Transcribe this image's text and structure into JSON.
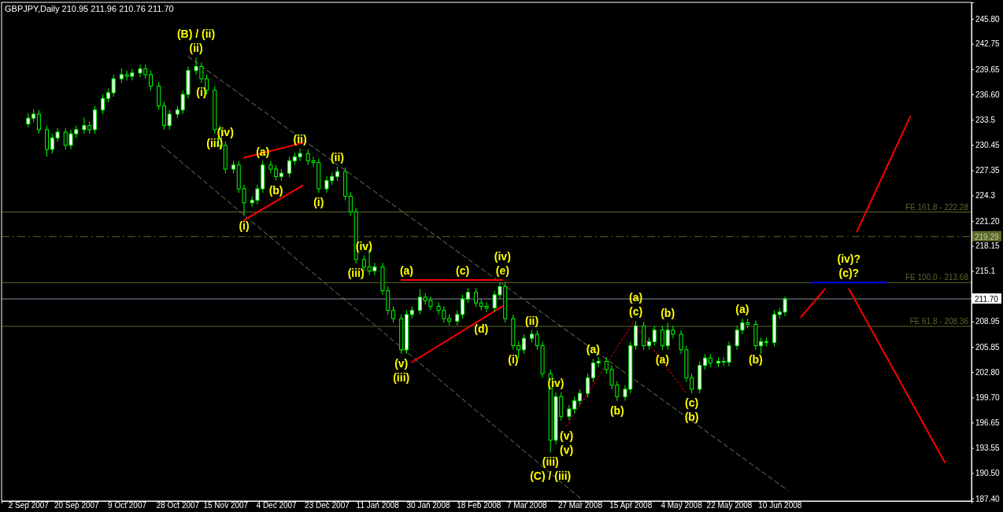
{
  "chart_data": {
    "type": "candlestick",
    "title": "GBPJPY,Daily  210.95 211.96 210.76 211.70",
    "xlim": [
      "2007-08-23",
      "2008-08-21"
    ],
    "ylim": [
      187.1,
      247.8
    ],
    "xticks": [
      {
        "value": "2007-09-02",
        "label": "2 Sep 2007"
      },
      {
        "value": "2007-09-20",
        "label": "20 Sep 2007"
      },
      {
        "value": "2007-10-09",
        "label": "9 Oct 2007"
      },
      {
        "value": "2007-10-28",
        "label": "28 Oct 2007"
      },
      {
        "value": "2007-11-15",
        "label": "15 Nov 2007"
      },
      {
        "value": "2007-12-04",
        "label": "4 Dec 2007"
      },
      {
        "value": "2007-12-23",
        "label": "23 Dec 2007"
      },
      {
        "value": "2008-01-11",
        "label": "11 Jan 2008"
      },
      {
        "value": "2008-01-30",
        "label": "30 Jan 2008"
      },
      {
        "value": "2008-02-18",
        "label": "18 Feb 2008"
      },
      {
        "value": "2008-03-07",
        "label": "7 Mar 2008"
      },
      {
        "value": "2008-03-27",
        "label": "27 Mar 2008"
      },
      {
        "value": "2008-04-15",
        "label": "15 Apr 2008"
      },
      {
        "value": "2008-05-04",
        "label": "4 May 2008"
      },
      {
        "value": "2008-05-22",
        "label": "22 May 2008"
      },
      {
        "value": "2008-06-10",
        "label": "10 Jun 2008"
      }
    ],
    "yticks": [
      {
        "value": 245.8,
        "label": "245.80"
      },
      242.75,
      239.65,
      {
        "value": 236.6,
        "label": "236.60"
      },
      233.5,
      230.45,
      227.35,
      224.3,
      {
        "value": 221.2,
        "label": "221.20"
      },
      218.15,
      215.1,
      208.95,
      205.85,
      {
        "value": 202.8,
        "label": "202.80"
      },
      {
        "value": 199.7,
        "label": "199.70"
      },
      196.65,
      193.55,
      {
        "value": 190.5,
        "label": "190.50"
      },
      {
        "value": 187.4,
        "label": "187.40"
      }
    ],
    "series": [
      {
        "color": "#00ff00",
        "x": [
          "2007-09-02",
          "2007-09-04",
          "2007-09-06",
          "2007-09-09",
          "2007-09-11",
          "2007-09-13",
          "2007-09-16",
          "2007-09-18",
          "2007-09-20",
          "2007-09-23",
          "2007-09-25",
          "2007-09-27",
          "2007-09-30",
          "2007-10-02",
          "2007-10-04",
          "2007-10-07",
          "2007-10-09",
          "2007-10-11",
          "2007-10-14",
          "2007-10-16",
          "2007-10-18",
          "2007-10-21",
          "2007-10-23",
          "2007-10-25",
          "2007-10-28",
          "2007-10-30",
          "2007-11-01",
          "2007-11-04",
          "2007-11-06",
          "2007-11-08",
          "2007-11-11",
          "2007-11-13",
          "2007-11-15",
          "2007-11-18",
          "2007-11-20",
          "2007-11-22",
          "2007-11-25",
          "2007-11-27",
          "2007-11-29",
          "2007-12-02",
          "2007-12-04",
          "2007-12-06",
          "2007-12-09",
          "2007-12-11",
          "2007-12-13",
          "2007-12-16",
          "2007-12-18",
          "2007-12-20",
          "2007-12-23",
          "2007-12-25",
          "2007-12-27",
          "2007-12-30",
          "2008-01-01",
          "2008-01-03",
          "2008-01-06",
          "2008-01-08",
          "2008-01-10",
          "2008-01-13",
          "2008-01-15",
          "2008-01-17",
          "2008-01-20",
          "2008-01-22",
          "2008-01-24",
          "2008-01-27",
          "2008-01-29",
          "2008-01-31",
          "2008-02-03",
          "2008-02-05",
          "2008-02-07",
          "2008-02-10",
          "2008-02-12",
          "2008-02-14",
          "2008-02-17",
          "2008-02-19",
          "2008-02-21",
          "2008-02-24",
          "2008-02-26",
          "2008-02-28",
          "2008-03-02",
          "2008-03-04",
          "2008-03-06",
          "2008-03-09",
          "2008-03-11",
          "2008-03-13",
          "2008-03-16",
          "2008-03-18",
          "2008-03-20",
          "2008-03-23",
          "2008-03-25",
          "2008-03-27",
          "2008-03-30",
          "2008-04-01",
          "2008-04-03",
          "2008-04-06",
          "2008-04-08",
          "2008-04-10",
          "2008-04-13",
          "2008-04-15",
          "2008-04-17",
          "2008-04-20",
          "2008-04-22",
          "2008-04-24",
          "2008-04-27",
          "2008-04-29",
          "2008-05-01",
          "2008-05-04",
          "2008-05-06",
          "2008-05-08",
          "2008-05-11",
          "2008-05-13",
          "2008-05-15",
          "2008-05-18",
          "2008-05-20",
          "2008-05-22",
          "2008-05-25",
          "2008-05-27",
          "2008-05-29",
          "2008-06-01",
          "2008-06-03",
          "2008-06-05",
          "2008-06-08",
          "2008-06-10",
          "2008-06-12"
        ],
        "ohlc": [
          [
            233.0,
            234.3,
            232.6,
            233.7
          ],
          [
            233.7,
            234.8,
            233.2,
            234.2
          ],
          [
            234.2,
            234.7,
            231.8,
            232.3
          ],
          [
            232.3,
            232.8,
            229.0,
            229.9
          ],
          [
            229.9,
            231.8,
            229.4,
            231.3
          ],
          [
            231.3,
            232.5,
            230.8,
            232.0
          ],
          [
            232.0,
            232.5,
            229.9,
            230.4
          ],
          [
            230.4,
            232.3,
            229.9,
            231.8
          ],
          [
            231.8,
            232.8,
            231.3,
            232.3
          ],
          [
            232.3,
            233.8,
            231.8,
            232.8
          ],
          [
            232.8,
            233.3,
            231.8,
            232.3
          ],
          [
            232.3,
            235.2,
            231.8,
            234.7
          ],
          [
            234.7,
            236.6,
            234.2,
            236.1
          ],
          [
            236.1,
            237.3,
            235.6,
            236.8
          ],
          [
            236.8,
            239.0,
            236.3,
            238.5
          ],
          [
            238.5,
            239.8,
            238.0,
            239.0
          ],
          [
            239.0,
            239.5,
            238.3,
            238.8
          ],
          [
            238.8,
            239.7,
            238.3,
            239.2
          ],
          [
            239.2,
            240.2,
            238.7,
            239.7
          ],
          [
            239.7,
            240.2,
            238.5,
            239.0
          ],
          [
            239.0,
            239.5,
            237.1,
            237.6
          ],
          [
            237.6,
            238.1,
            234.7,
            235.2
          ],
          [
            235.2,
            235.7,
            232.3,
            232.8
          ],
          [
            232.8,
            234.7,
            232.3,
            234.2
          ],
          [
            234.2,
            235.2,
            233.7,
            234.7
          ],
          [
            234.7,
            237.1,
            234.2,
            236.6
          ],
          [
            236.6,
            240.0,
            236.1,
            239.5
          ],
          [
            239.5,
            241.1,
            239.0,
            240.0
          ],
          [
            240.0,
            240.5,
            238.0,
            238.5
          ],
          [
            238.5,
            239.0,
            236.6,
            237.1
          ],
          [
            237.1,
            237.6,
            231.8,
            232.3
          ],
          [
            232.3,
            232.8,
            229.9,
            230.4
          ],
          [
            230.4,
            230.9,
            227.0,
            227.5
          ],
          [
            227.5,
            228.5,
            227.0,
            228.0
          ],
          [
            228.0,
            228.5,
            224.6,
            225.1
          ],
          [
            225.1,
            225.6,
            221.8,
            223.4
          ],
          [
            223.4,
            224.2,
            222.9,
            223.7
          ],
          [
            223.7,
            225.6,
            223.2,
            225.1
          ],
          [
            225.1,
            228.5,
            224.6,
            228.0
          ],
          [
            228.0,
            228.5,
            227.0,
            227.5
          ],
          [
            227.5,
            228.0,
            226.1,
            226.6
          ],
          [
            226.6,
            227.5,
            226.1,
            227.0
          ],
          [
            227.0,
            229.0,
            226.5,
            228.5
          ],
          [
            228.5,
            229.5,
            228.0,
            229.0
          ],
          [
            229.0,
            230.0,
            228.5,
            229.4
          ],
          [
            229.4,
            229.9,
            228.0,
            228.5
          ],
          [
            228.5,
            229.0,
            227.8,
            228.3
          ],
          [
            228.3,
            228.8,
            224.6,
            225.1
          ],
          [
            225.1,
            226.6,
            224.6,
            226.1
          ],
          [
            226.1,
            227.1,
            225.6,
            226.6
          ],
          [
            226.6,
            227.8,
            226.1,
            227.2
          ],
          [
            227.2,
            227.7,
            223.7,
            224.2
          ],
          [
            224.2,
            224.7,
            221.8,
            222.3
          ],
          [
            222.3,
            222.8,
            216.0,
            216.5
          ],
          [
            216.5,
            217.0,
            215.1,
            215.6
          ],
          [
            215.6,
            217.8,
            214.6,
            215.1
          ],
          [
            215.1,
            216.1,
            214.6,
            215.6
          ],
          [
            215.6,
            216.1,
            212.2,
            212.7
          ],
          [
            212.7,
            213.2,
            209.8,
            210.3
          ],
          [
            210.3,
            210.8,
            208.8,
            209.3
          ],
          [
            209.3,
            209.8,
            205.0,
            205.5
          ],
          [
            205.5,
            210.3,
            205.0,
            209.8
          ],
          [
            209.8,
            210.8,
            209.3,
            210.3
          ],
          [
            210.3,
            212.9,
            209.8,
            211.9
          ],
          [
            211.9,
            212.4,
            211.0,
            211.5
          ],
          [
            211.5,
            212.0,
            210.3,
            210.8
          ],
          [
            210.8,
            211.3,
            209.8,
            210.3
          ],
          [
            210.3,
            210.8,
            208.8,
            209.3
          ],
          [
            209.3,
            209.8,
            208.5,
            209.0
          ],
          [
            209.0,
            210.3,
            208.5,
            209.8
          ],
          [
            209.8,
            212.2,
            209.3,
            211.7
          ],
          [
            211.7,
            213.0,
            211.2,
            212.5
          ],
          [
            212.5,
            213.0,
            210.7,
            211.2
          ],
          [
            211.2,
            211.7,
            210.3,
            210.8
          ],
          [
            210.8,
            211.3,
            210.1,
            210.6
          ],
          [
            210.6,
            212.7,
            210.1,
            212.2
          ],
          [
            212.2,
            213.7,
            211.7,
            213.2
          ],
          [
            213.2,
            213.7,
            208.8,
            209.3
          ],
          [
            209.3,
            209.8,
            205.5,
            206.0
          ],
          [
            206.0,
            206.5,
            204.5,
            205.5
          ],
          [
            205.5,
            207.4,
            205.0,
            206.9
          ],
          [
            206.9,
            207.9,
            206.4,
            207.4
          ],
          [
            207.4,
            207.9,
            205.5,
            206.0
          ],
          [
            206.0,
            206.5,
            202.1,
            202.6
          ],
          [
            202.6,
            203.1,
            193.0,
            194.5
          ],
          [
            194.5,
            200.3,
            194.0,
            199.8
          ],
          [
            199.8,
            200.3,
            196.9,
            197.4
          ],
          [
            197.4,
            198.8,
            196.9,
            198.3
          ],
          [
            198.3,
            199.8,
            197.8,
            199.3
          ],
          [
            199.3,
            200.7,
            198.8,
            200.2
          ],
          [
            200.2,
            202.6,
            199.7,
            202.1
          ],
          [
            202.1,
            204.4,
            201.6,
            203.9
          ],
          [
            203.9,
            204.6,
            203.4,
            204.1
          ],
          [
            204.1,
            204.6,
            202.6,
            203.1
          ],
          [
            203.1,
            203.6,
            200.7,
            201.2
          ],
          [
            201.2,
            201.7,
            199.3,
            199.8
          ],
          [
            199.8,
            201.2,
            199.3,
            200.7
          ],
          [
            200.7,
            206.5,
            200.2,
            206.0
          ],
          [
            206.0,
            209.0,
            205.5,
            208.4
          ],
          [
            208.4,
            208.9,
            205.5,
            206.0
          ],
          [
            206.0,
            207.0,
            205.5,
            206.5
          ],
          [
            206.5,
            208.4,
            206.0,
            207.9
          ],
          [
            207.9,
            208.4,
            205.5,
            206.0
          ],
          [
            206.0,
            208.8,
            205.5,
            207.9
          ],
          [
            207.9,
            208.4,
            206.9,
            207.4
          ],
          [
            207.4,
            207.9,
            205.0,
            205.5
          ],
          [
            205.5,
            206.0,
            201.6,
            202.1
          ],
          [
            202.1,
            202.6,
            200.2,
            200.7
          ],
          [
            200.7,
            204.1,
            200.2,
            203.6
          ],
          [
            203.6,
            205.0,
            203.1,
            204.5
          ],
          [
            204.5,
            205.0,
            203.4,
            203.9
          ],
          [
            203.9,
            204.6,
            203.4,
            204.1
          ],
          [
            204.1,
            204.6,
            203.5,
            204.0
          ],
          [
            204.0,
            206.5,
            203.5,
            206.0
          ],
          [
            206.0,
            208.4,
            205.5,
            207.9
          ],
          [
            207.9,
            209.3,
            207.4,
            208.8
          ],
          [
            208.8,
            209.3,
            208.1,
            208.6
          ],
          [
            208.6,
            209.1,
            205.5,
            206.0
          ],
          [
            206.0,
            207.0,
            205.0,
            206.5
          ],
          [
            206.5,
            207.0,
            205.9,
            206.4
          ],
          [
            206.4,
            210.3,
            205.9,
            209.8
          ],
          [
            209.8,
            210.6,
            209.3,
            210.1
          ],
          [
            210.1,
            212.0,
            209.6,
            211.7
          ]
        ]
      },
      {
        "type": "line",
        "color": "#7a7a5a",
        "line_style": "dashed",
        "x": [
          "2007-11-01",
          "2008-06-13"
        ],
        "values": [
          241.2,
          188.4
        ]
      },
      {
        "type": "line",
        "color": "#7a7a5a",
        "line_style": "dashed",
        "x": [
          "2007-10-22",
          "2008-03-28"
        ],
        "values": [
          230.4,
          187.2
        ]
      },
      {
        "type": "line",
        "color": "#ff0000",
        "x": [
          "2007-11-22",
          "2007-12-14"
        ],
        "values": [
          228.9,
          230.7
        ]
      },
      {
        "type": "line",
        "color": "#ff0000",
        "x": [
          "2007-11-22",
          "2007-12-14"
        ],
        "values": [
          221.3,
          225.5
        ]
      },
      {
        "type": "line",
        "color": "#ff0000",
        "x": [
          "2008-01-20",
          "2008-02-27"
        ],
        "values": [
          214.0,
          214.0
        ]
      },
      {
        "type": "line",
        "color": "#ff0000",
        "x": [
          "2008-01-24",
          "2008-02-27"
        ],
        "values": [
          204.0,
          210.8
        ]
      },
      {
        "type": "line",
        "color": "#ff0000",
        "line_style": "dotted",
        "x": [
          "2008-03-22",
          "2008-04-16",
          "2008-05-06"
        ],
        "values": [
          196.2,
          208.8,
          200.2
        ]
      },
      {
        "type": "line",
        "color": "#ff0000",
        "x": [
          "2008-06-18",
          "2008-06-27"
        ],
        "values": [
          209.5,
          212.9
        ]
      },
      {
        "type": "line",
        "color": "#ff0000",
        "x": [
          "2008-07-09",
          "2008-07-29"
        ],
        "values": [
          219.9,
          233.9
        ]
      },
      {
        "type": "line",
        "color": "#ff0000",
        "x": [
          "2008-07-06",
          "2008-08-11"
        ],
        "values": [
          212.9,
          191.8
        ]
      },
      {
        "type": "line",
        "color": "#0000ff",
        "x": [
          "2008-06-22",
          "2008-07-20"
        ],
        "values": [
          213.7,
          213.7
        ]
      }
    ],
    "ref_lines": [
      {
        "axis": "y",
        "value": 222.28,
        "label": "FE 161.8 - 222.28",
        "color": "#5a6a2a"
      },
      {
        "axis": "y",
        "value": 213.68,
        "label": "FE 100.0 - 213.68",
        "color": "#5a6a2a"
      },
      {
        "axis": "y",
        "value": 208.36,
        "label": "FE 61.8 - 208.36",
        "color": "#5a6a2a"
      },
      {
        "axis": "y",
        "value": 219.29,
        "label": "219.29",
        "color": "#5a6a2a",
        "line_style": "dashed"
      },
      {
        "axis": "y",
        "value": 211.7,
        "label": "211.70",
        "color": "#8090a0"
      }
    ],
    "annotations": [
      {
        "text": "(ii)",
        "x": "2007-11-04",
        "y": 241.1
      },
      {
        "text": "(B) / (ii)",
        "x": "2007-11-04",
        "y": 241.1
      },
      {
        "text": "(i)",
        "x": "2007-11-06",
        "y": 238.0
      },
      {
        "text": "(iv)",
        "x": "2007-11-15",
        "y": 230.9
      },
      {
        "text": "(iii)",
        "x": "2007-11-11",
        "y": 231.8
      },
      {
        "text": "(a)",
        "x": "2007-11-29",
        "y": 228.5
      },
      {
        "text": "(b)",
        "x": "2007-12-04",
        "y": 226.1
      },
      {
        "text": "(ii)",
        "x": "2007-12-13",
        "y": 230.0
      },
      {
        "text": "(i)",
        "x": "2007-11-22",
        "y": 221.8
      },
      {
        "text": "(ii)",
        "x": "2007-12-27",
        "y": 227.8
      },
      {
        "text": "(i)",
        "x": "2007-12-20",
        "y": 224.6
      },
      {
        "text": "(iv)",
        "x": "2008-01-06",
        "y": 217.0
      },
      {
        "text": "(iii)",
        "x": "2008-01-03",
        "y": 216.0
      },
      {
        "text": "(a)",
        "x": "2008-01-22",
        "y": 214.0
      },
      {
        "text": "(c)",
        "x": "2008-02-12",
        "y": 214.0
      },
      {
        "text": "(e)",
        "x": "2008-02-27",
        "y": 214.0
      },
      {
        "text": "(iv)",
        "x": "2008-02-27",
        "y": 214.0
      },
      {
        "text": "(d)",
        "x": "2008-02-19",
        "y": 209.2
      },
      {
        "text": "(v)",
        "x": "2008-01-20",
        "y": 205.0
      },
      {
        "text": "(iii)",
        "x": "2008-01-20",
        "y": 205.0
      },
      {
        "text": "(ii)",
        "x": "2008-03-09",
        "y": 207.9
      },
      {
        "text": "(i)",
        "x": "2008-03-02",
        "y": 205.5
      },
      {
        "text": "(iv)",
        "x": "2008-03-18",
        "y": 200.3
      },
      {
        "text": "(iii)",
        "x": "2008-03-16",
        "y": 193.0
      },
      {
        "text": "(C) / (iii)",
        "x": "2008-03-16",
        "y": 193.0
      },
      {
        "text": "(v)",
        "x": "2008-03-22",
        "y": 196.2
      },
      {
        "text": "(v)",
        "x": "2008-03-22",
        "y": 196.2
      },
      {
        "text": "(a)",
        "x": "2008-04-01",
        "y": 204.4
      },
      {
        "text": "(b)",
        "x": "2008-04-10",
        "y": 199.3
      },
      {
        "text": "(c)",
        "x": "2008-04-17",
        "y": 209.0
      },
      {
        "text": "(a)",
        "x": "2008-04-17",
        "y": 209.0
      },
      {
        "text": "(b)",
        "x": "2008-04-29",
        "y": 208.8
      },
      {
        "text": "(a)",
        "x": "2008-04-27",
        "y": 205.5
      },
      {
        "text": "(c)",
        "x": "2008-05-08",
        "y": 200.2
      },
      {
        "text": "(b)",
        "x": "2008-05-08",
        "y": 200.2
      },
      {
        "text": "(a)",
        "x": "2008-05-27",
        "y": 209.3
      },
      {
        "text": "(b)",
        "x": "2008-06-01",
        "y": 205.5
      },
      {
        "text": "(c)?",
        "x": "2008-07-06",
        "y": 213.7
      },
      {
        "text": "(iv)?",
        "x": "2008-07-06",
        "y": 213.7
      }
    ]
  }
}
